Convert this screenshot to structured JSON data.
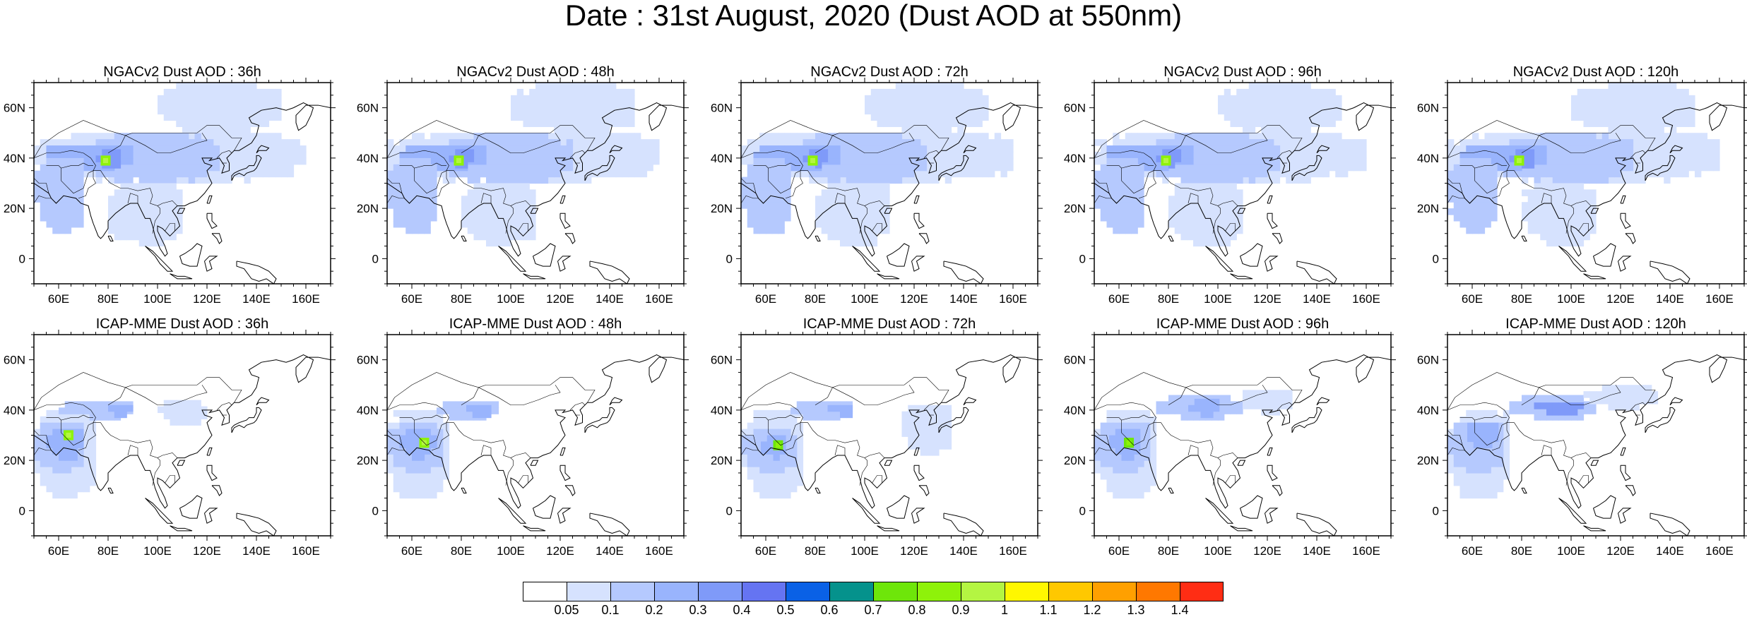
{
  "title": "Date : 31st August, 2020 (Dust AOD at 550nm)",
  "panel_titles": [
    "NGACv2 Dust AOD : 36h",
    "NGACv2 Dust AOD : 48h",
    "NGACv2 Dust AOD : 72h",
    "NGACv2 Dust AOD : 96h",
    "NGACv2 Dust AOD : 120h",
    "ICAP-MME Dust AOD : 36h",
    "ICAP-MME Dust AOD : 48h",
    "ICAP-MME Dust AOD : 72h",
    "ICAP-MME Dust AOD : 96h",
    "ICAP-MME Dust AOD : 120h"
  ],
  "lat_ticks": [
    "60N",
    "40N",
    "20N",
    "0"
  ],
  "lon_ticks": [
    "60E",
    "80E",
    "100E",
    "120E",
    "140E",
    "160E"
  ],
  "map_extent": {
    "lon_min": 50,
    "lon_max": 170,
    "lat_min": -10,
    "lat_max": 70
  },
  "colorbar": {
    "labels": [
      "0.05",
      "0.1",
      "0.2",
      "0.3",
      "0.4",
      "0.5",
      "0.6",
      "0.7",
      "0.8",
      "0.9",
      "1",
      "1.1",
      "1.2",
      "1.3",
      "1.4"
    ],
    "colors": [
      "#ffffff",
      "#d6e2fe",
      "#b5c9fe",
      "#99b4fd",
      "#7f9af9",
      "#6574f2",
      "#0a61e6",
      "#05928c",
      "#6ee60a",
      "#8ef20a",
      "#b4f542",
      "#fff700",
      "#ffc800",
      "#ffa000",
      "#ff7800",
      "#ff2d14"
    ]
  },
  "chart_data": [
    {
      "type": "heatmap",
      "model": "NGACv2",
      "lead": "36h",
      "hotspot": {
        "lon": 79,
        "lat": 39,
        "aod": 0.85
      },
      "regions": [
        {
          "lon": [
            50,
            160
          ],
          "lat": [
            30,
            50
          ],
          "level": 1
        },
        {
          "lon": [
            70,
            125
          ],
          "lat": [
            30,
            48
          ],
          "level": 2
        },
        {
          "lon": [
            55,
            90
          ],
          "lat": [
            35,
            45
          ],
          "level": 3
        },
        {
          "lon": [
            75,
            85
          ],
          "lat": [
            36,
            42
          ],
          "level": 4
        },
        {
          "lon": [
            50,
            70
          ],
          "lat": [
            10,
            40
          ],
          "level": 2
        },
        {
          "lon": [
            80,
            110
          ],
          "lat": [
            5,
            30
          ],
          "level": 1
        },
        {
          "lon": [
            100,
            150
          ],
          "lat": [
            50,
            68
          ],
          "level": 1
        }
      ]
    },
    {
      "type": "heatmap",
      "model": "NGACv2",
      "lead": "48h",
      "hotspot": {
        "lon": 79,
        "lat": 39,
        "aod": 0.85
      },
      "regions": [
        {
          "lon": [
            50,
            160
          ],
          "lat": [
            30,
            50
          ],
          "level": 1
        },
        {
          "lon": [
            70,
            125
          ],
          "lat": [
            30,
            48
          ],
          "level": 2
        },
        {
          "lon": [
            55,
            90
          ],
          "lat": [
            35,
            45
          ],
          "level": 3
        },
        {
          "lon": [
            75,
            85
          ],
          "lat": [
            36,
            42
          ],
          "level": 4
        },
        {
          "lon": [
            50,
            70
          ],
          "lat": [
            10,
            40
          ],
          "level": 2
        },
        {
          "lon": [
            80,
            110
          ],
          "lat": [
            5,
            30
          ],
          "level": 1
        },
        {
          "lon": [
            100,
            150
          ],
          "lat": [
            50,
            68
          ],
          "level": 1
        }
      ]
    },
    {
      "type": "heatmap",
      "model": "NGACv2",
      "lead": "72h",
      "hotspot": {
        "lon": 79,
        "lat": 39,
        "aod": 0.85
      },
      "regions": [
        {
          "lon": [
            50,
            160
          ],
          "lat": [
            30,
            50
          ],
          "level": 1
        },
        {
          "lon": [
            70,
            125
          ],
          "lat": [
            30,
            48
          ],
          "level": 2
        },
        {
          "lon": [
            55,
            90
          ],
          "lat": [
            35,
            45
          ],
          "level": 3
        },
        {
          "lon": [
            75,
            85
          ],
          "lat": [
            36,
            42
          ],
          "level": 4
        },
        {
          "lon": [
            50,
            70
          ],
          "lat": [
            10,
            40
          ],
          "level": 2
        },
        {
          "lon": [
            80,
            110
          ],
          "lat": [
            5,
            30
          ],
          "level": 1
        },
        {
          "lon": [
            100,
            150
          ],
          "lat": [
            50,
            68
          ],
          "level": 1
        }
      ]
    },
    {
      "type": "heatmap",
      "model": "NGACv2",
      "lead": "96h",
      "hotspot": {
        "lon": 79,
        "lat": 39,
        "aod": 0.85
      },
      "regions": [
        {
          "lon": [
            50,
            160
          ],
          "lat": [
            30,
            50
          ],
          "level": 1
        },
        {
          "lon": [
            70,
            125
          ],
          "lat": [
            30,
            48
          ],
          "level": 2
        },
        {
          "lon": [
            55,
            90
          ],
          "lat": [
            35,
            45
          ],
          "level": 3
        },
        {
          "lon": [
            75,
            85
          ],
          "lat": [
            36,
            42
          ],
          "level": 4
        },
        {
          "lon": [
            50,
            70
          ],
          "lat": [
            10,
            40
          ],
          "level": 2
        },
        {
          "lon": [
            80,
            110
          ],
          "lat": [
            5,
            30
          ],
          "level": 1
        },
        {
          "lon": [
            100,
            150
          ],
          "lat": [
            50,
            68
          ],
          "level": 1
        }
      ]
    },
    {
      "type": "heatmap",
      "model": "NGACv2",
      "lead": "120h",
      "hotspot": {
        "lon": 79,
        "lat": 39,
        "aod": 0.85
      },
      "regions": [
        {
          "lon": [
            50,
            160
          ],
          "lat": [
            30,
            50
          ],
          "level": 1
        },
        {
          "lon": [
            70,
            125
          ],
          "lat": [
            30,
            48
          ],
          "level": 2
        },
        {
          "lon": [
            55,
            90
          ],
          "lat": [
            35,
            45
          ],
          "level": 3
        },
        {
          "lon": [
            75,
            85
          ],
          "lat": [
            36,
            42
          ],
          "level": 4
        },
        {
          "lon": [
            50,
            70
          ],
          "lat": [
            10,
            40
          ],
          "level": 2
        },
        {
          "lon": [
            80,
            110
          ],
          "lat": [
            5,
            30
          ],
          "level": 1
        },
        {
          "lon": [
            100,
            150
          ],
          "lat": [
            50,
            68
          ],
          "level": 1
        }
      ]
    },
    {
      "type": "heatmap",
      "model": "ICAP-MME",
      "lead": "36h",
      "hotspot": {
        "lon": 64,
        "lat": 30,
        "aod": 0.85
      },
      "regions": [
        {
          "lon": [
            50,
            75
          ],
          "lat": [
            5,
            40
          ],
          "level": 1
        },
        {
          "lon": [
            50,
            70
          ],
          "lat": [
            15,
            35
          ],
          "level": 2
        },
        {
          "lon": [
            55,
            68
          ],
          "lat": [
            20,
            32
          ],
          "level": 3
        },
        {
          "lon": [
            60,
            90
          ],
          "lat": [
            36,
            42
          ],
          "level": 2
        },
        {
          "lon": [
            80,
            88
          ],
          "lat": [
            37,
            42
          ],
          "level": 3
        },
        {
          "lon": [
            100,
            120
          ],
          "lat": [
            34,
            42
          ],
          "level": 1
        }
      ]
    },
    {
      "type": "heatmap",
      "model": "ICAP-MME",
      "lead": "48h",
      "hotspot": {
        "lon": 65,
        "lat": 27,
        "aod": 0.85
      },
      "regions": [
        {
          "lon": [
            50,
            75
          ],
          "lat": [
            5,
            40
          ],
          "level": 1
        },
        {
          "lon": [
            50,
            72
          ],
          "lat": [
            15,
            35
          ],
          "level": 2
        },
        {
          "lon": [
            55,
            68
          ],
          "lat": [
            20,
            32
          ],
          "level": 3
        },
        {
          "lon": [
            70,
            95
          ],
          "lat": [
            36,
            42
          ],
          "level": 2
        },
        {
          "lon": [
            82,
            92
          ],
          "lat": [
            37,
            42
          ],
          "level": 3
        }
      ]
    },
    {
      "type": "heatmap",
      "model": "ICAP-MME",
      "lead": "72h",
      "hotspot": {
        "lon": 65,
        "lat": 26,
        "aod": 0.8
      },
      "regions": [
        {
          "lon": [
            50,
            75
          ],
          "lat": [
            5,
            40
          ],
          "level": 1
        },
        {
          "lon": [
            50,
            72
          ],
          "lat": [
            15,
            32
          ],
          "level": 2
        },
        {
          "lon": [
            58,
            68
          ],
          "lat": [
            20,
            30
          ],
          "level": 3
        },
        {
          "lon": [
            70,
            95
          ],
          "lat": [
            36,
            42
          ],
          "level": 2
        },
        {
          "lon": [
            85,
            95
          ],
          "lat": [
            37,
            42
          ],
          "level": 3
        },
        {
          "lon": [
            115,
            135
          ],
          "lat": [
            22,
            42
          ],
          "level": 1
        }
      ]
    },
    {
      "type": "heatmap",
      "model": "ICAP-MME",
      "lead": "96h",
      "hotspot": {
        "lon": 64,
        "lat": 27,
        "aod": 0.8
      },
      "regions": [
        {
          "lon": [
            50,
            75
          ],
          "lat": [
            5,
            40
          ],
          "level": 1
        },
        {
          "lon": [
            50,
            72
          ],
          "lat": [
            15,
            35
          ],
          "level": 2
        },
        {
          "lon": [
            56,
            68
          ],
          "lat": [
            20,
            32
          ],
          "level": 3
        },
        {
          "lon": [
            75,
            110
          ],
          "lat": [
            36,
            44
          ],
          "level": 2
        },
        {
          "lon": [
            88,
            100
          ],
          "lat": [
            37,
            43
          ],
          "level": 3
        },
        {
          "lon": [
            110,
            130
          ],
          "lat": [
            38,
            48
          ],
          "level": 1
        }
      ]
    },
    {
      "type": "heatmap",
      "model": "ICAP-MME",
      "lead": "120h",
      "hotspot": null,
      "regions": [
        {
          "lon": [
            50,
            75
          ],
          "lat": [
            5,
            40
          ],
          "level": 1
        },
        {
          "lon": [
            50,
            72
          ],
          "lat": [
            15,
            35
          ],
          "level": 2
        },
        {
          "lon": [
            58,
            70
          ],
          "lat": [
            25,
            35
          ],
          "level": 3
        },
        {
          "lon": [
            75,
            110
          ],
          "lat": [
            36,
            44
          ],
          "level": 2
        },
        {
          "lon": [
            85,
            105
          ],
          "lat": [
            38,
            43
          ],
          "level": 4
        },
        {
          "lon": [
            105,
            135
          ],
          "lat": [
            40,
            48
          ],
          "level": 1
        }
      ]
    }
  ]
}
